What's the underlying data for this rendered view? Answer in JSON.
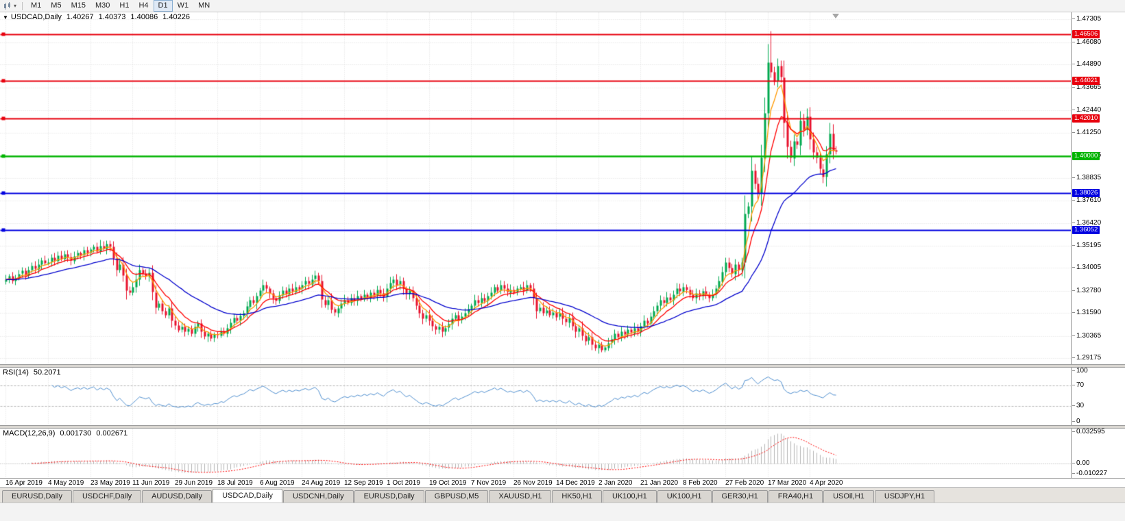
{
  "toolbar": {
    "timeframes": [
      "M1",
      "M5",
      "M15",
      "M30",
      "H1",
      "H4",
      "D1",
      "W1",
      "MN"
    ],
    "active_timeframe": "D1"
  },
  "header": {
    "symbol": "USDCAD,Daily",
    "open": "1.40267",
    "high": "1.40373",
    "low": "1.40086",
    "close": "1.40226"
  },
  "price_axis": {
    "ticks": [
      "1.47305",
      "1.46080",
      "1.44890",
      "1.43665",
      "1.42440",
      "1.41250",
      "1.40025",
      "1.38835",
      "1.37610",
      "1.36420",
      "1.35195",
      "1.34005",
      "1.32780",
      "1.31590",
      "1.30365",
      "1.29175"
    ]
  },
  "hlines": [
    {
      "label": "1.46506",
      "price": 1.46506,
      "color": "#e8000d",
      "kind": "resistance"
    },
    {
      "label": "1.44021",
      "price": 1.44021,
      "color": "#e8000d",
      "kind": "resistance"
    },
    {
      "label": "1.42010",
      "price": 1.4201,
      "color": "#e8000d",
      "kind": "resistance"
    },
    {
      "label": "1.40000",
      "price": 1.4,
      "color": "#00b400",
      "kind": "round-number"
    },
    {
      "label": "1.38026",
      "price": 1.38026,
      "color": "#0000e0",
      "kind": "support"
    },
    {
      "label": "1.36052",
      "price": 1.36052,
      "color": "#0000e0",
      "kind": "support"
    }
  ],
  "rsi_panel": {
    "name": "RSI(14)",
    "value": "50.2071",
    "period": 14,
    "levels": [
      {
        "label": "100",
        "value": 100
      },
      {
        "label": "70",
        "value": 70
      },
      {
        "label": "30",
        "value": 30
      },
      {
        "label": "0",
        "value": 0
      }
    ],
    "line_color": "#4f8fd0"
  },
  "macd_panel": {
    "name": "MACD(12,26,9)",
    "value_main": "0.001730",
    "value_signal": "0.002671",
    "fast": 12,
    "slow": 26,
    "signal": 9,
    "axis": [
      {
        "label": "0.032595",
        "value": 0.032595
      },
      {
        "label": "0.00",
        "value": 0
      },
      {
        "label": "-0.010227",
        "value": -0.010227
      }
    ],
    "hist_color": "#b4b4b4",
    "signal_color": "#ff0000"
  },
  "tabs": {
    "items": [
      "EURUSD,Daily",
      "USDCHF,Daily",
      "AUDUSD,Daily",
      "USDCAD,Daily",
      "USDCNH,Daily",
      "EURUSD,Daily",
      "GBPUSD,M5",
      "XAUUSD,H1",
      "HK50,H1",
      "UK100,H1",
      "UK100,H1",
      "GER30,H1",
      "FRA40,H1",
      "USOil,H1",
      "USDJPY,H1"
    ],
    "active_index": 3,
    "active": "USDCAD,Daily"
  },
  "chart_data": {
    "type": "candlestick",
    "symbol": "USDCAD",
    "timeframe": "Daily",
    "ylim": [
      1.2886,
      1.4768
    ],
    "x_labels": [
      "16 Apr 2019",
      "4 May 2019",
      "23 May 2019",
      "11 Jun 2019",
      "29 Jun 2019",
      "18 Jul 2019",
      "6 Aug 2019",
      "24 Aug 2019",
      "12 Sep 2019",
      "1 Oct 2019",
      "19 Oct 2019",
      "7 Nov 2019",
      "26 Nov 2019",
      "14 Dec 2019",
      "2 Jan 2020",
      "21 Jan 2020",
      "8 Feb 2020",
      "27 Feb 2020",
      "17 Mar 2020",
      "4 Apr 2020"
    ],
    "label_every_bars": 13,
    "closes": [
      1.334,
      1.3358,
      1.3332,
      1.3348,
      1.3371,
      1.3386,
      1.3362,
      1.3391,
      1.3412,
      1.3396,
      1.3421,
      1.3442,
      1.3426,
      1.3433,
      1.3456,
      1.3441,
      1.347,
      1.3452,
      1.3476,
      1.3461,
      1.3442,
      1.3466,
      1.3481,
      1.347,
      1.3496,
      1.3482,
      1.3502,
      1.3516,
      1.3491,
      1.3521,
      1.3506,
      1.3531,
      1.3516,
      1.3452,
      1.3391,
      1.3421,
      1.3361,
      1.3282,
      1.3271,
      1.3301,
      1.3341,
      1.3391,
      1.3372,
      1.3356,
      1.3376,
      1.3272,
      1.3191,
      1.3212,
      1.3172,
      1.3151,
      1.3186,
      1.3121,
      1.3096,
      1.3071,
      1.3086,
      1.3061,
      1.3076,
      1.3051,
      1.3086,
      1.3106,
      1.3061,
      1.3036,
      1.3051,
      1.3026,
      1.3046,
      1.3041,
      1.3066,
      1.3051,
      1.3081,
      1.3111,
      1.3136,
      1.3121,
      1.3146,
      1.3161,
      1.3196,
      1.3231,
      1.3216,
      1.3251,
      1.3281,
      1.3311,
      1.3291,
      1.3266,
      1.3241,
      1.3226,
      1.3256,
      1.3281,
      1.3261,
      1.3291,
      1.3276,
      1.3301,
      1.3291,
      1.3311,
      1.3331,
      1.3316,
      1.3341,
      1.3361,
      1.3331,
      1.3231,
      1.3206,
      1.3231,
      1.3181,
      1.3161,
      1.3186,
      1.3211,
      1.3231,
      1.3216,
      1.3241,
      1.3226,
      1.3251,
      1.3236,
      1.3261,
      1.3246,
      1.3271,
      1.3256,
      1.3286,
      1.3266,
      1.3246,
      1.3291,
      1.3321,
      1.3341,
      1.3311,
      1.3331,
      1.3291,
      1.3261,
      1.3281,
      1.3241,
      1.3201,
      1.3161,
      1.3131,
      1.3151,
      1.3121,
      1.3091,
      1.3071,
      1.3086,
      1.3061,
      1.3081,
      1.3101,
      1.3131,
      1.3151,
      1.3121,
      1.3141,
      1.3161,
      1.3181,
      1.3201,
      1.3231,
      1.3216,
      1.3241,
      1.3226,
      1.3251,
      1.3271,
      1.3301,
      1.3281,
      1.3311,
      1.3291,
      1.3271,
      1.3286,
      1.3271,
      1.3291,
      1.3301,
      1.3281,
      1.3311,
      1.3291,
      1.3241,
      1.3171,
      1.3191,
      1.3161,
      1.3176,
      1.3151,
      1.3166,
      1.3141,
      1.3161,
      1.3131,
      1.3111,
      1.3136,
      1.3091,
      1.3061,
      1.3081,
      1.3041,
      1.3011,
      1.3031,
      1.2991,
      1.2971,
      1.2991,
      1.2961,
      1.2976,
      1.3001,
      1.3021,
      1.3051,
      1.3031,
      1.3061,
      1.3046,
      1.3071,
      1.3056,
      1.3081,
      1.3061,
      1.3091,
      1.3121,
      1.3106,
      1.3141,
      1.3171,
      1.3201,
      1.3231,
      1.3216,
      1.3246,
      1.3231,
      1.3261,
      1.3291,
      1.3276,
      1.3301,
      1.3286,
      1.3261,
      1.3241,
      1.3266,
      1.3251,
      1.3276,
      1.3261,
      1.3241,
      1.3261,
      1.3291,
      1.3331,
      1.3381,
      1.3431,
      1.3401,
      1.3371,
      1.3421,
      1.3391,
      1.3431,
      1.3691,
      1.3731,
      1.3921,
      1.3851,
      1.3801,
      1.3991,
      1.4231,
      1.4501,
      1.4451,
      1.4401,
      1.4481,
      1.4421,
      1.4181,
      1.4051,
      1.3991,
      1.4081,
      1.4061,
      1.4191,
      1.4141,
      1.4211,
      1.4091,
      1.4021,
      1.3991,
      1.3931,
      1.3891,
      1.4011,
      1.4121,
      1.4031,
      1.40226
    ],
    "wick_high_overrides": {
      "235": 1.4669
    },
    "wick_low_overrides": {
      "183": 1.2952,
      "251": 1.3858
    },
    "moving_averages": [
      {
        "period": 5,
        "color": "#ff9900"
      },
      {
        "period": 10,
        "color": "#ff0000"
      },
      {
        "period": 34,
        "color": "#0000cd"
      }
    ],
    "colors": {
      "candle_up": "#00a94f",
      "candle_down": "#e8112d",
      "grid": "#dcdcdc",
      "background": "#ffffff"
    }
  }
}
